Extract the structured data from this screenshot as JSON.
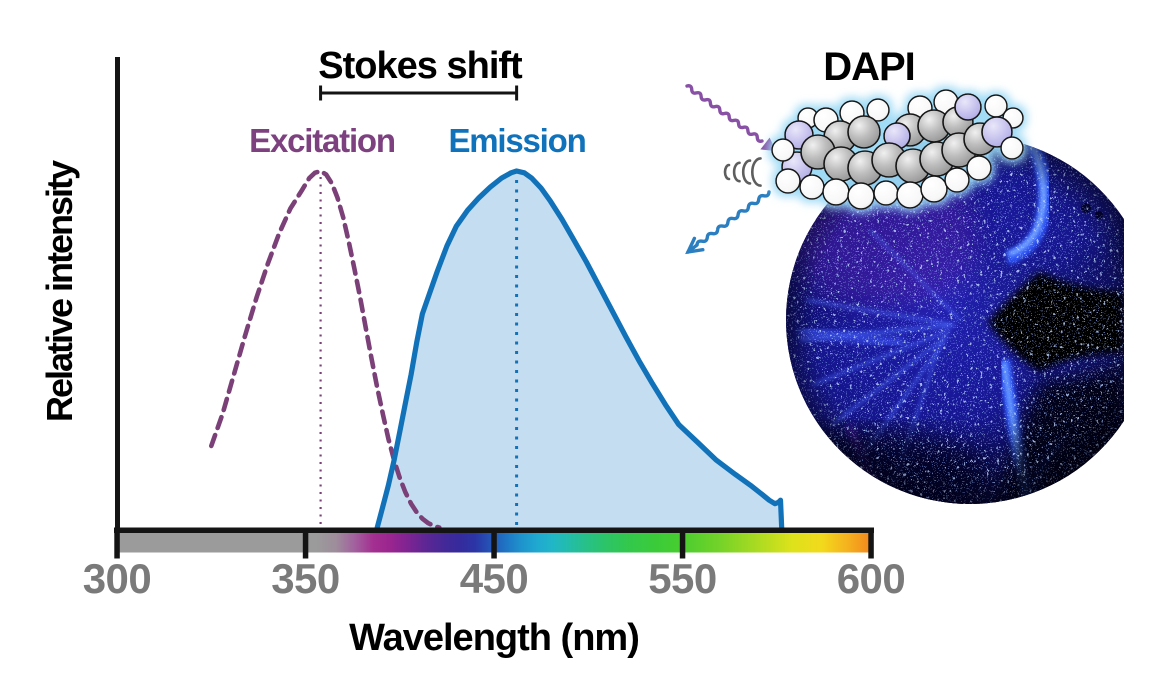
{
  "figure": {
    "title_stokes": "Stokes shift",
    "molecule_title": "DAPI",
    "excitation_label": "Excitation",
    "emission_label": "Emission",
    "x_axis_label": "Wavelength (nm)",
    "y_axis_label": "Relative intensity"
  },
  "colors": {
    "text": "#141414",
    "tick_label": "#7a7a7a",
    "excitation_label": "#7d4180",
    "excitation_curve": "#7b4078",
    "emission_label": "#0f72ba",
    "emission_curve": "#1171b9",
    "emission_fill": "#c4ddf0",
    "excitation_photon_arrow": "#8851a5",
    "emission_photon_arrow": "#2b7fc0",
    "relaxation_arcs": "#5e5e5e"
  },
  "chart_data": {
    "type": "area",
    "title": "DAPI excitation and emission spectra",
    "xlabel": "Wavelength (nm)",
    "ylabel": "Relative intensity",
    "x_ticks": [
      300,
      350,
      450,
      550,
      600
    ],
    "x_tick_labels": [
      "300",
      "350",
      "450",
      "550",
      "600"
    ],
    "axis_note": "tick marks evenly spaced (compressed nonlinear wavelength axis), no y-axis ticks",
    "stokes_shift": {
      "label": "Stokes shift",
      "from_nm": 358,
      "to_nm": 462
    },
    "series": [
      {
        "name": "Excitation",
        "style": "dashed",
        "color": "#7b4078",
        "peak_nm": 358,
        "points": [
          [
            325,
            0.23
          ],
          [
            328,
            0.32
          ],
          [
            331,
            0.43
          ],
          [
            334,
            0.54
          ],
          [
            337,
            0.645
          ],
          [
            340,
            0.74
          ],
          [
            343,
            0.825
          ],
          [
            346,
            0.895
          ],
          [
            349,
            0.945
          ],
          [
            352,
            0.98
          ],
          [
            355,
            0.995
          ],
          [
            358,
            1.0
          ],
          [
            361,
            0.99
          ],
          [
            364,
            0.965
          ],
          [
            367,
            0.925
          ],
          [
            370,
            0.87
          ],
          [
            373,
            0.8
          ],
          [
            376,
            0.725
          ],
          [
            379,
            0.645
          ],
          [
            382,
            0.56
          ],
          [
            385,
            0.475
          ],
          [
            388,
            0.395
          ],
          [
            391,
            0.32
          ],
          [
            394,
            0.25
          ],
          [
            397,
            0.19
          ],
          [
            400,
            0.14
          ],
          [
            403,
            0.1
          ],
          [
            406,
            0.068
          ],
          [
            409,
            0.044
          ],
          [
            412,
            0.026
          ],
          [
            415,
            0.014
          ],
          [
            418,
            0.006
          ],
          [
            421,
            0.001
          ]
        ]
      },
      {
        "name": "Emission",
        "style": "solid-filled",
        "color": "#1171b9",
        "fill": "#c4ddf0",
        "peak_nm": 462,
        "points": [
          [
            388,
            0.0
          ],
          [
            391,
            0.06
          ],
          [
            394,
            0.12
          ],
          [
            397,
            0.19
          ],
          [
            400,
            0.27
          ],
          [
            403,
            0.35
          ],
          [
            406,
            0.43
          ],
          [
            409,
            0.52
          ],
          [
            412,
            0.6
          ],
          [
            416,
            0.66
          ],
          [
            420,
            0.72
          ],
          [
            425,
            0.79
          ],
          [
            430,
            0.845
          ],
          [
            436,
            0.89
          ],
          [
            442,
            0.925
          ],
          [
            448,
            0.955
          ],
          [
            454,
            0.98
          ],
          [
            459,
            0.995
          ],
          [
            462,
            1.0
          ],
          [
            466,
            0.995
          ],
          [
            470,
            0.98
          ],
          [
            475,
            0.952
          ],
          [
            480,
            0.915
          ],
          [
            486,
            0.865
          ],
          [
            492,
            0.81
          ],
          [
            499,
            0.745
          ],
          [
            506,
            0.675
          ],
          [
            513,
            0.605
          ],
          [
            520,
            0.535
          ],
          [
            527,
            0.468
          ],
          [
            534,
            0.405
          ],
          [
            541,
            0.345
          ],
          [
            548,
            0.29
          ],
          [
            554,
            0.24
          ],
          [
            559,
            0.19
          ],
          [
            564,
            0.15
          ],
          [
            568,
            0.12
          ],
          [
            571,
            0.095
          ],
          [
            573,
            0.078
          ],
          [
            574.5,
            0.068
          ],
          [
            575.5,
            0.072
          ],
          [
            576,
            0.078
          ],
          [
            576.3,
            0.0
          ]
        ]
      }
    ],
    "spectrum_bar_stops": [
      [
        300,
        "#9b9b9b"
      ],
      [
        356,
        "#9b9b9b"
      ],
      [
        366,
        "#9e8d9b"
      ],
      [
        376,
        "#a2619e"
      ],
      [
        386,
        "#a42f91"
      ],
      [
        395,
        "#9a2590"
      ],
      [
        404,
        "#7f2492"
      ],
      [
        413,
        "#5f2694"
      ],
      [
        422,
        "#482897"
      ],
      [
        431,
        "#362a9c"
      ],
      [
        440,
        "#2b35a6"
      ],
      [
        448,
        "#2453b6"
      ],
      [
        456,
        "#1f74c4"
      ],
      [
        464,
        "#1e92cc"
      ],
      [
        473,
        "#1fa9d0"
      ],
      [
        481,
        "#21b6c7"
      ],
      [
        489,
        "#23bcac"
      ],
      [
        498,
        "#27c08b"
      ],
      [
        509,
        "#2cc468"
      ],
      [
        521,
        "#33c84d"
      ],
      [
        536,
        "#3bcb39"
      ],
      [
        549,
        "#48cd30"
      ],
      [
        559,
        "#70d229"
      ],
      [
        569,
        "#a6da22"
      ],
      [
        579,
        "#dde21b"
      ],
      [
        587,
        "#f2d91c"
      ],
      [
        594,
        "#f5b01e"
      ],
      [
        600,
        "#f2871e"
      ]
    ]
  }
}
